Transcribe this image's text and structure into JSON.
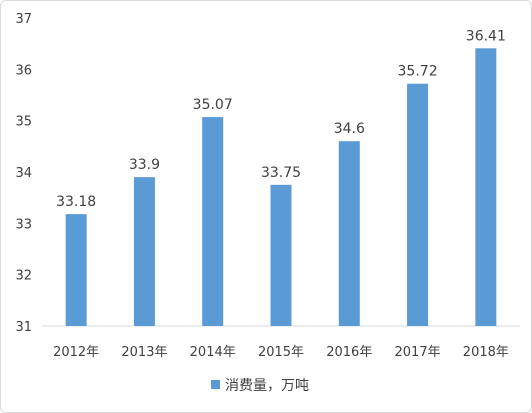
{
  "chart_data": {
    "type": "bar",
    "categories": [
      "2012年",
      "2013年",
      "2014年",
      "2015年",
      "2016年",
      "2017年",
      "2018年"
    ],
    "series": [
      {
        "name": "消费量，万吨",
        "values": [
          33.18,
          33.9,
          35.07,
          33.75,
          34.6,
          35.72,
          36.41
        ]
      }
    ],
    "data_labels": [
      "33.18",
      "33.9",
      "35.07",
      "33.75",
      "34.6",
      "35.72",
      "36.41"
    ],
    "yticks": [
      31,
      32,
      33,
      34,
      35,
      36,
      37
    ],
    "ylim": [
      31,
      37
    ],
    "grid": false,
    "legend_position": "bottom",
    "colors": {
      "bar": "#5b9bd5",
      "axis": "#d9d9d9",
      "text": "#404040"
    }
  }
}
